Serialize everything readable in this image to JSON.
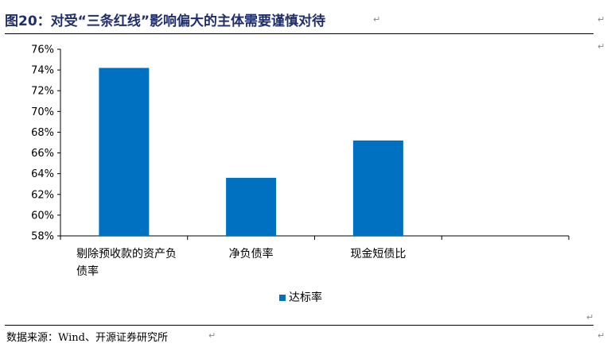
{
  "title": "图20：对受“三条红线”影响偏大的主体需要谨慎对待",
  "source": "数据来源：Wind、开源证券研究所",
  "paragraph_mark": "↵",
  "chart_data": {
    "type": "bar",
    "categories": [
      [
        "剔除预收款的资产负",
        "债率"
      ],
      [
        "净负债率"
      ],
      [
        "现金短债比"
      ],
      [
        ""
      ]
    ],
    "series": [
      {
        "name": "达标率",
        "values": [
          74.2,
          63.6,
          67.2,
          null
        ],
        "color": "#0070c0"
      }
    ],
    "ylim": [
      58,
      76
    ],
    "yticks": [
      "58%",
      "60%",
      "62%",
      "64%",
      "66%",
      "68%",
      "70%",
      "72%",
      "74%",
      "76%"
    ],
    "ytick_values": [
      58,
      60,
      62,
      64,
      66,
      68,
      70,
      72,
      74,
      76
    ],
    "grid": false,
    "legend": "bottom"
  }
}
